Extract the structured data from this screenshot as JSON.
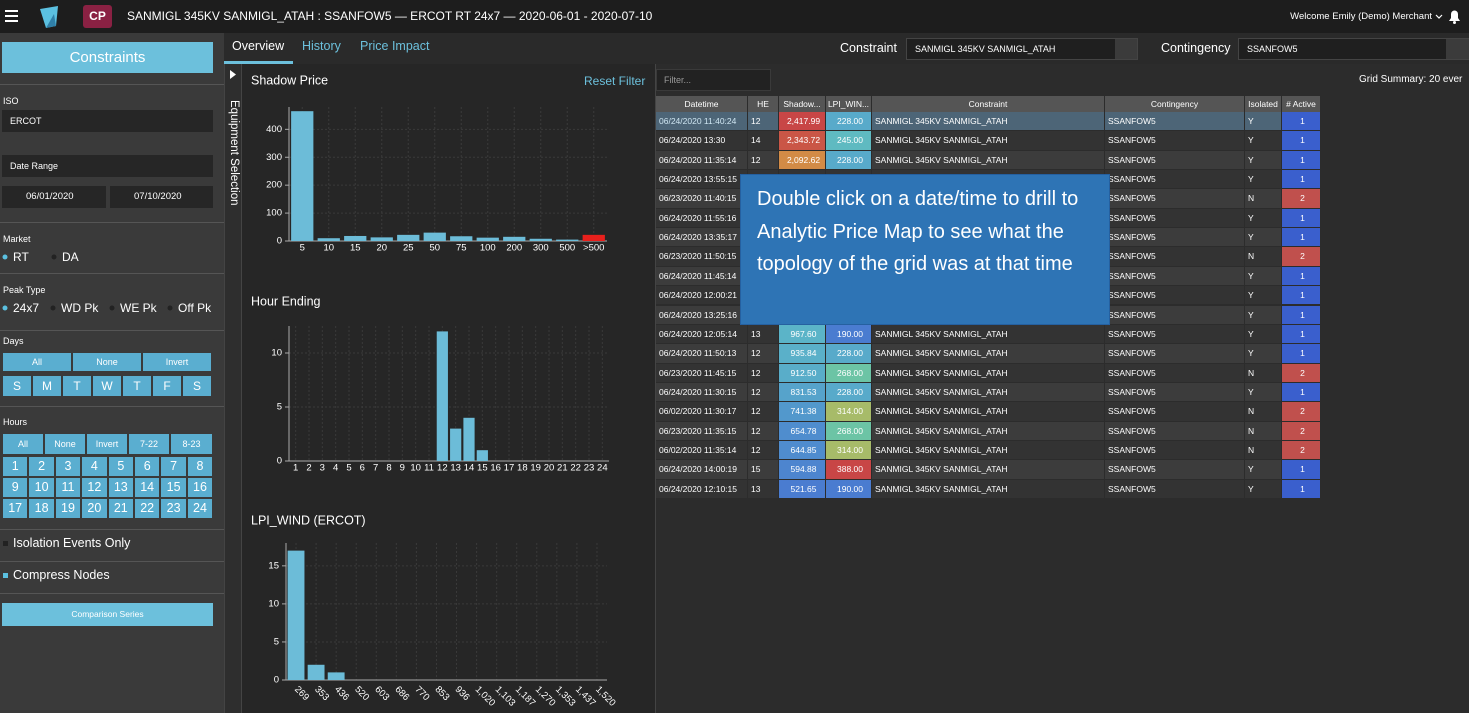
{
  "header": {
    "badge": "CP",
    "title": "SANMIGL 345KV SANMIGL_ATAH : SSANFOW5 — ERCOT RT 24x7 — 2020-06-01 - 2020-07-10",
    "welcome": "Welcome Emily (Demo) Merchant"
  },
  "sidebar": {
    "constraints": "Constraints",
    "iso_label": "ISO",
    "iso": "ERCOT",
    "date_range": "Date Range",
    "start_date": "06/01/2020",
    "end_date": "07/10/2020",
    "market_label": "Market",
    "market_options": [
      "RT",
      "DA"
    ],
    "peak_label": "Peak Type",
    "peak_options": [
      "24x7",
      "WD Pk",
      "WE Pk",
      "Off Pk"
    ],
    "days_label": "Days",
    "days_actions": [
      "All",
      "None",
      "Invert"
    ],
    "days": [
      "S",
      "M",
      "T",
      "W",
      "T",
      "F",
      "S"
    ],
    "hours_label": "Hours",
    "hours_actions": [
      "All",
      "None",
      "Invert",
      "7-22",
      "8-23"
    ],
    "hours": [
      1,
      2,
      3,
      4,
      5,
      6,
      7,
      8,
      9,
      10,
      11,
      12,
      13,
      14,
      15,
      16,
      17,
      18,
      19,
      20,
      21,
      22,
      23,
      24
    ],
    "isolation": "Isolation Events Only",
    "compress": "Compress Nodes",
    "comparison": "Comparison Series"
  },
  "tabs": [
    "Overview",
    "History",
    "Price Impact"
  ],
  "equipment_selection": "Equipment Selection",
  "toolbar": {
    "constraint_label": "Constraint",
    "constraint": "SANMIGL 345KV SANMIGL_ATAH",
    "contingency_label": "Contingency",
    "contingency": "SSANFOW5",
    "reset_filter": "Reset Filter",
    "filter_placeholder": "Filter...",
    "grid_summary": "Grid Summary: 20 ever"
  },
  "callout": "Double click on a date/time to drill to Analytic Price Map to see what the topology of the grid was at that time",
  "table": {
    "columns": [
      "Datetime",
      "HE",
      "Shadow...",
      "LPI_WIN...",
      "Constraint",
      "Contingency",
      "Isolated",
      "# Active"
    ],
    "rows": [
      [
        "06/24/2020 11:40:24",
        12,
        "2,417.99",
        "228.00",
        "SANMIGL 345KV SANMIGL_ATAH",
        "SSANFOW5",
        "Y",
        1
      ],
      [
        "06/24/2020 13:30",
        14,
        "2,343.72",
        "245.00",
        "SANMIGL 345KV SANMIGL_ATAH",
        "SSANFOW5",
        "Y",
        1
      ],
      [
        "06/24/2020 11:35:14",
        12,
        "2,092.62",
        "228.00",
        "SANMIGL 345KV SANMIGL_ATAH",
        "SSANFOW5",
        "Y",
        1
      ],
      [
        "06/24/2020 13:55:15",
        null,
        null,
        null,
        null,
        "SSANFOW5",
        "Y",
        1
      ],
      [
        "06/23/2020 11:40:15",
        null,
        null,
        null,
        null,
        "SSANFOW5",
        "N",
        2
      ],
      [
        "06/24/2020 11:55:16",
        null,
        null,
        null,
        null,
        "SSANFOW5",
        "Y",
        1
      ],
      [
        "06/24/2020 13:35:17",
        null,
        null,
        null,
        null,
        "SSANFOW5",
        "Y",
        1
      ],
      [
        "06/23/2020 11:50:15",
        null,
        null,
        null,
        null,
        "SSANFOW5",
        "N",
        2
      ],
      [
        "06/24/2020 11:45:14",
        null,
        null,
        null,
        null,
        "SSANFOW5",
        "Y",
        1
      ],
      [
        "06/24/2020 12:00:21",
        null,
        null,
        null,
        null,
        "SSANFOW5",
        "Y",
        1
      ],
      [
        "06/24/2020 13:25:16",
        null,
        null,
        null,
        null,
        "SSANFOW5",
        "Y",
        1
      ],
      [
        "06/24/2020 12:05:14",
        13,
        "967.60",
        "190.00",
        "SANMIGL 345KV SANMIGL_ATAH",
        "SSANFOW5",
        "Y",
        1
      ],
      [
        "06/24/2020 11:50:13",
        12,
        "935.84",
        "228.00",
        "SANMIGL 345KV SANMIGL_ATAH",
        "SSANFOW5",
        "Y",
        1
      ],
      [
        "06/23/2020 11:45:15",
        12,
        "912.50",
        "268.00",
        "SANMIGL 345KV SANMIGL_ATAH",
        "SSANFOW5",
        "N",
        2
      ],
      [
        "06/24/2020 11:30:15",
        12,
        "831.53",
        "228.00",
        "SANMIGL 345KV SANMIGL_ATAH",
        "SSANFOW5",
        "Y",
        1
      ],
      [
        "06/02/2020 11:30:17",
        12,
        "741.38",
        "314.00",
        "SANMIGL 345KV SANMIGL_ATAH",
        "SSANFOW5",
        "N",
        2
      ],
      [
        "06/23/2020 11:35:15",
        12,
        "654.78",
        "268.00",
        "SANMIGL 345KV SANMIGL_ATAH",
        "SSANFOW5",
        "N",
        2
      ],
      [
        "06/02/2020 11:35:14",
        12,
        "644.85",
        "314.00",
        "SANMIGL 345KV SANMIGL_ATAH",
        "SSANFOW5",
        "N",
        2
      ],
      [
        "06/24/2020 14:00:19",
        15,
        "594.88",
        "388.00",
        "SANMIGL 345KV SANMIGL_ATAH",
        "SSANFOW5",
        "Y",
        1
      ],
      [
        "06/24/2020 12:10:15",
        13,
        "521.65",
        "190.00",
        "SANMIGL 345KV SANMIGL_ATAH",
        "SSANFOW5",
        "Y",
        1
      ]
    ]
  },
  "chart_data": [
    {
      "type": "bar",
      "title": "Shadow Price",
      "categories": [
        "5",
        "10",
        "15",
        "20",
        "25",
        "50",
        "75",
        "100",
        "200",
        "300",
        "500",
        ">500"
      ],
      "values": [
        465,
        10,
        18,
        13,
        22,
        30,
        17,
        12,
        15,
        8,
        5,
        22
      ],
      "colors": [
        "#6cbcd8",
        "#6cbcd8",
        "#6cbcd8",
        "#6cbcd8",
        "#6cbcd8",
        "#6cbcd8",
        "#6cbcd8",
        "#6cbcd8",
        "#6cbcd8",
        "#6cbcd8",
        "#6cbcd8",
        "#e8201c"
      ],
      "ylim": [
        0,
        480
      ],
      "yticks": [
        0,
        100,
        200,
        300,
        400
      ],
      "grid": true
    },
    {
      "type": "bar",
      "title": "Hour Ending",
      "categories": [
        "1",
        "2",
        "3",
        "4",
        "5",
        "6",
        "7",
        "8",
        "9",
        "10",
        "11",
        "12",
        "13",
        "14",
        "15",
        "16",
        "17",
        "18",
        "19",
        "20",
        "21",
        "22",
        "23",
        "24"
      ],
      "values": [
        0,
        0,
        0,
        0,
        0,
        0,
        0,
        0,
        0,
        0,
        0,
        12,
        3,
        4,
        1,
        0,
        0,
        0,
        0,
        0,
        0,
        0,
        0,
        0
      ],
      "color": "#6cbcd8",
      "ylim": [
        0,
        12.5
      ],
      "yticks": [
        0,
        5,
        10
      ],
      "grid": true
    },
    {
      "type": "bar",
      "title": "LPI_WIND (ERCOT)",
      "categories": [
        "269",
        "353",
        "436",
        "520",
        "603",
        "686",
        "770",
        "853",
        "936",
        "1,020",
        "1,103",
        "1,187",
        "1,270",
        "1,353",
        "1,437",
        "1,520"
      ],
      "values": [
        17,
        2,
        1,
        0,
        0,
        0,
        0,
        0,
        0,
        0,
        0,
        0,
        0,
        0,
        0,
        0
      ],
      "color": "#6cbcd8",
      "ylim": [
        0,
        18
      ],
      "yticks": [
        0,
        5,
        10,
        15
      ],
      "grid": true,
      "x_label_rotation": 45
    }
  ]
}
